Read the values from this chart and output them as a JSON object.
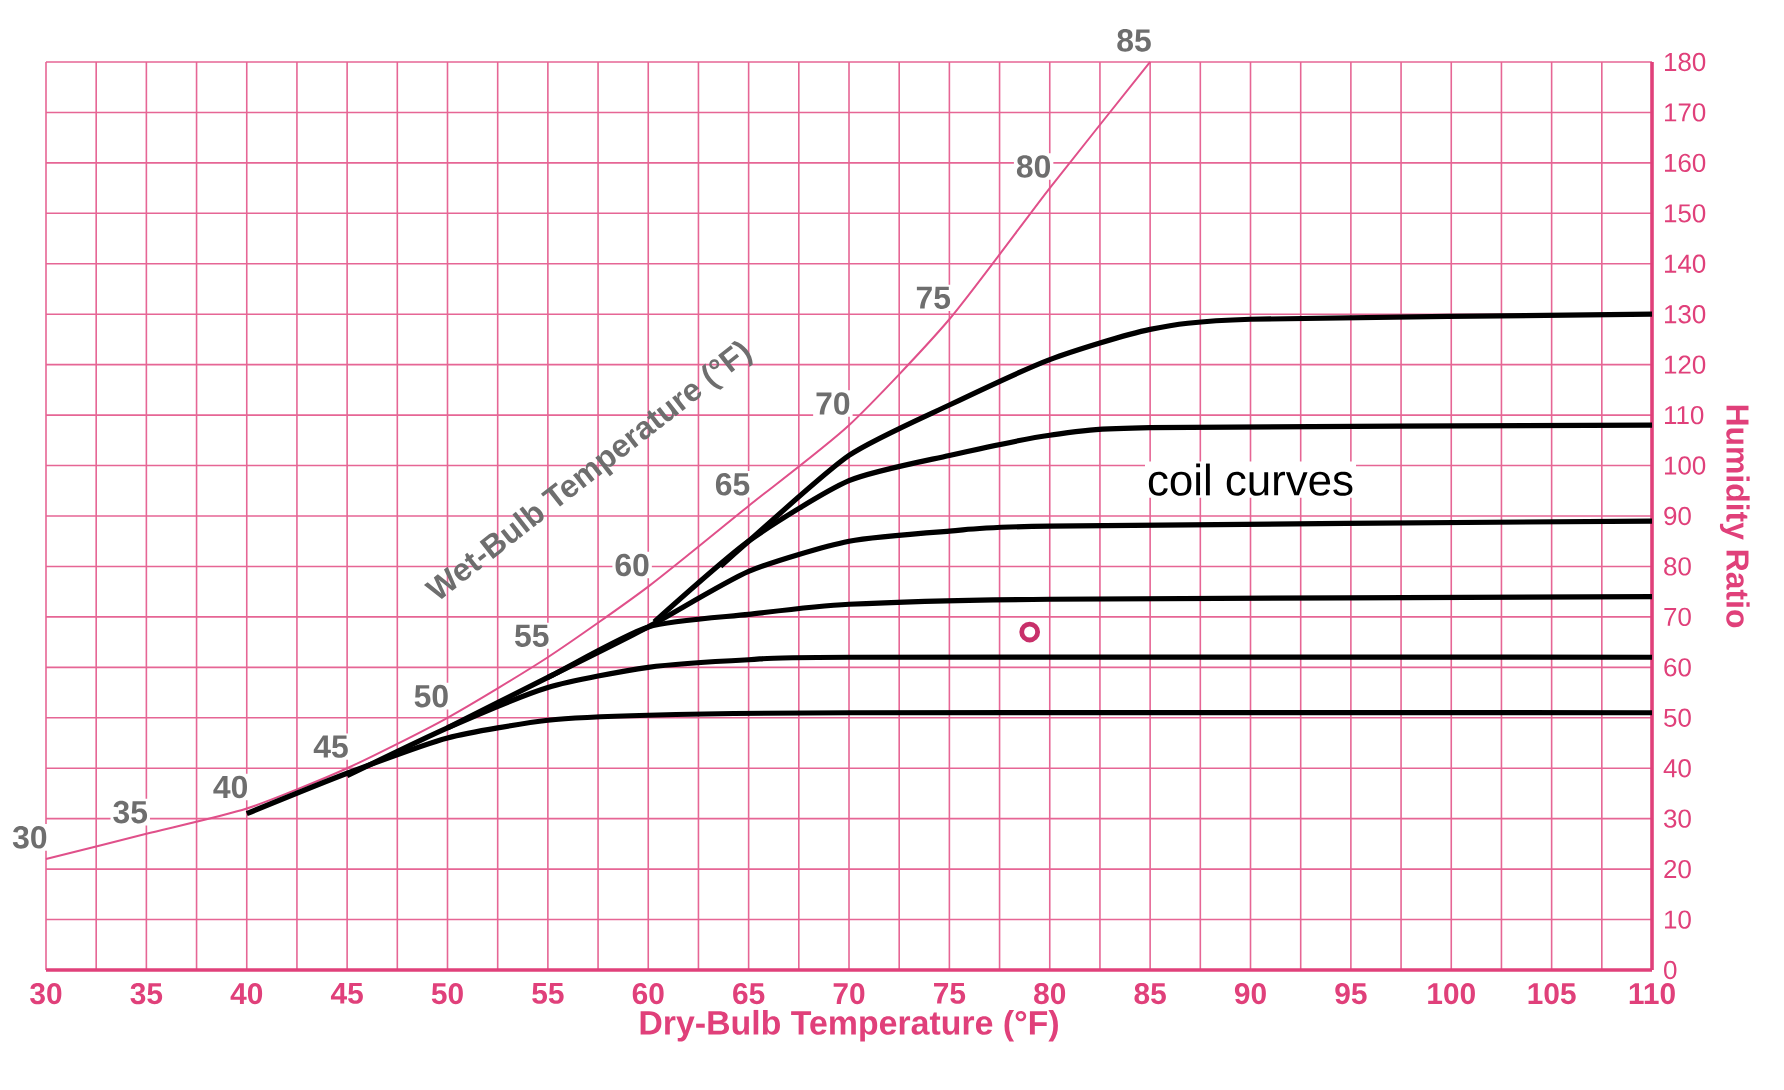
{
  "chart_data": {
    "type": "line",
    "xlabel": "Dry-Bulb Temperature (°F)",
    "ylabel": "Humidity Ratio",
    "xlim": [
      30,
      110
    ],
    "ylim": [
      0,
      180
    ],
    "xticks": [
      30,
      {
        "value": 32.5,
        "label": null
      },
      35,
      {
        "value": 37.5,
        "label": null
      },
      40,
      {
        "value": 42.5,
        "label": null
      },
      45,
      {
        "value": 47.5,
        "label": null
      },
      50,
      {
        "value": 52.5,
        "label": null
      },
      55,
      {
        "value": 57.5,
        "label": null
      },
      60,
      {
        "value": 62.5,
        "label": null
      },
      65,
      {
        "value": 67.5,
        "label": null
      },
      70,
      {
        "value": 72.5,
        "label": null
      },
      75,
      {
        "value": 77.5,
        "label": null
      },
      80,
      {
        "value": 82.5,
        "label": null
      },
      85,
      {
        "value": 87.5,
        "label": null
      },
      90,
      {
        "value": 92.5,
        "label": null
      },
      95,
      {
        "value": 97.5,
        "label": null
      },
      100,
      {
        "value": 102.5,
        "label": null
      },
      105,
      {
        "value": 107.5,
        "label": null
      },
      110
    ],
    "yticks": [
      0,
      10,
      20,
      30,
      40,
      50,
      60,
      70,
      80,
      90,
      100,
      110,
      120,
      130,
      140,
      150,
      160,
      170,
      180
    ],
    "grid": true,
    "series": [
      {
        "color": "#e0508a",
        "x": [
          30,
          35,
          40,
          45,
          50,
          55,
          60,
          65,
          70,
          75,
          80,
          85
        ],
        "values": [
          22,
          27,
          32,
          40,
          50,
          62,
          76,
          92,
          108,
          129,
          155,
          180
        ]
      },
      {
        "color": "#000000",
        "x": [
          40,
          45,
          50,
          55,
          60,
          70,
          110
        ],
        "values": [
          31,
          39,
          46,
          49.5,
          50.5,
          51,
          51
        ]
      },
      {
        "color": "#000000",
        "x": [
          45,
          50,
          55,
          60,
          65,
          70,
          110
        ],
        "values": [
          38.5,
          48,
          56,
          60,
          61.5,
          62,
          62
        ]
      },
      {
        "color": "#000000",
        "x": [
          50,
          55,
          60,
          65,
          70,
          80,
          110
        ],
        "values": [
          48,
          58,
          68,
          70.5,
          72.5,
          73.5,
          74
        ]
      },
      {
        "color": "#000000",
        "x": [
          55,
          60,
          65,
          70,
          75,
          80,
          110
        ],
        "values": [
          58,
          68,
          79,
          85,
          87,
          88,
          89
        ]
      },
      {
        "color": "#000000",
        "x": [
          60.3,
          65,
          70,
          75,
          80,
          85,
          110
        ],
        "values": [
          69,
          85,
          97,
          102,
          106,
          107.5,
          108
        ]
      },
      {
        "color": "#000000",
        "x": [
          63.6,
          65,
          70,
          75,
          80,
          85,
          90,
          110
        ],
        "values": [
          80,
          85,
          102,
          112,
          121,
          127,
          129,
          130
        ]
      },
      {
        "type": "scatter",
        "marker": "circle",
        "color": "#c8306a",
        "x": [
          79
        ],
        "values": [
          67
        ]
      }
    ],
    "annotations": [
      "Wet-Bulb Temperature (°F)",
      "coil curves",
      {
        "text": "30",
        "x": 30,
        "y": 22
      },
      {
        "text": "35",
        "x": 35,
        "y": 27
      },
      {
        "text": "40",
        "x": 40,
        "y": 32
      },
      {
        "text": "45",
        "x": 45,
        "y": 40
      },
      {
        "text": "50",
        "x": 50,
        "y": 50
      },
      {
        "text": "55",
        "x": 55,
        "y": 62
      },
      {
        "text": "60",
        "x": 60,
        "y": 76
      },
      {
        "text": "65",
        "x": 65,
        "y": 92
      },
      {
        "text": "70",
        "x": 70,
        "y": 108
      },
      {
        "text": "75",
        "x": 75,
        "y": 129
      },
      {
        "text": "80",
        "x": 80,
        "y": 155
      },
      {
        "text": "85",
        "x": 85,
        "y": 180
      }
    ]
  }
}
